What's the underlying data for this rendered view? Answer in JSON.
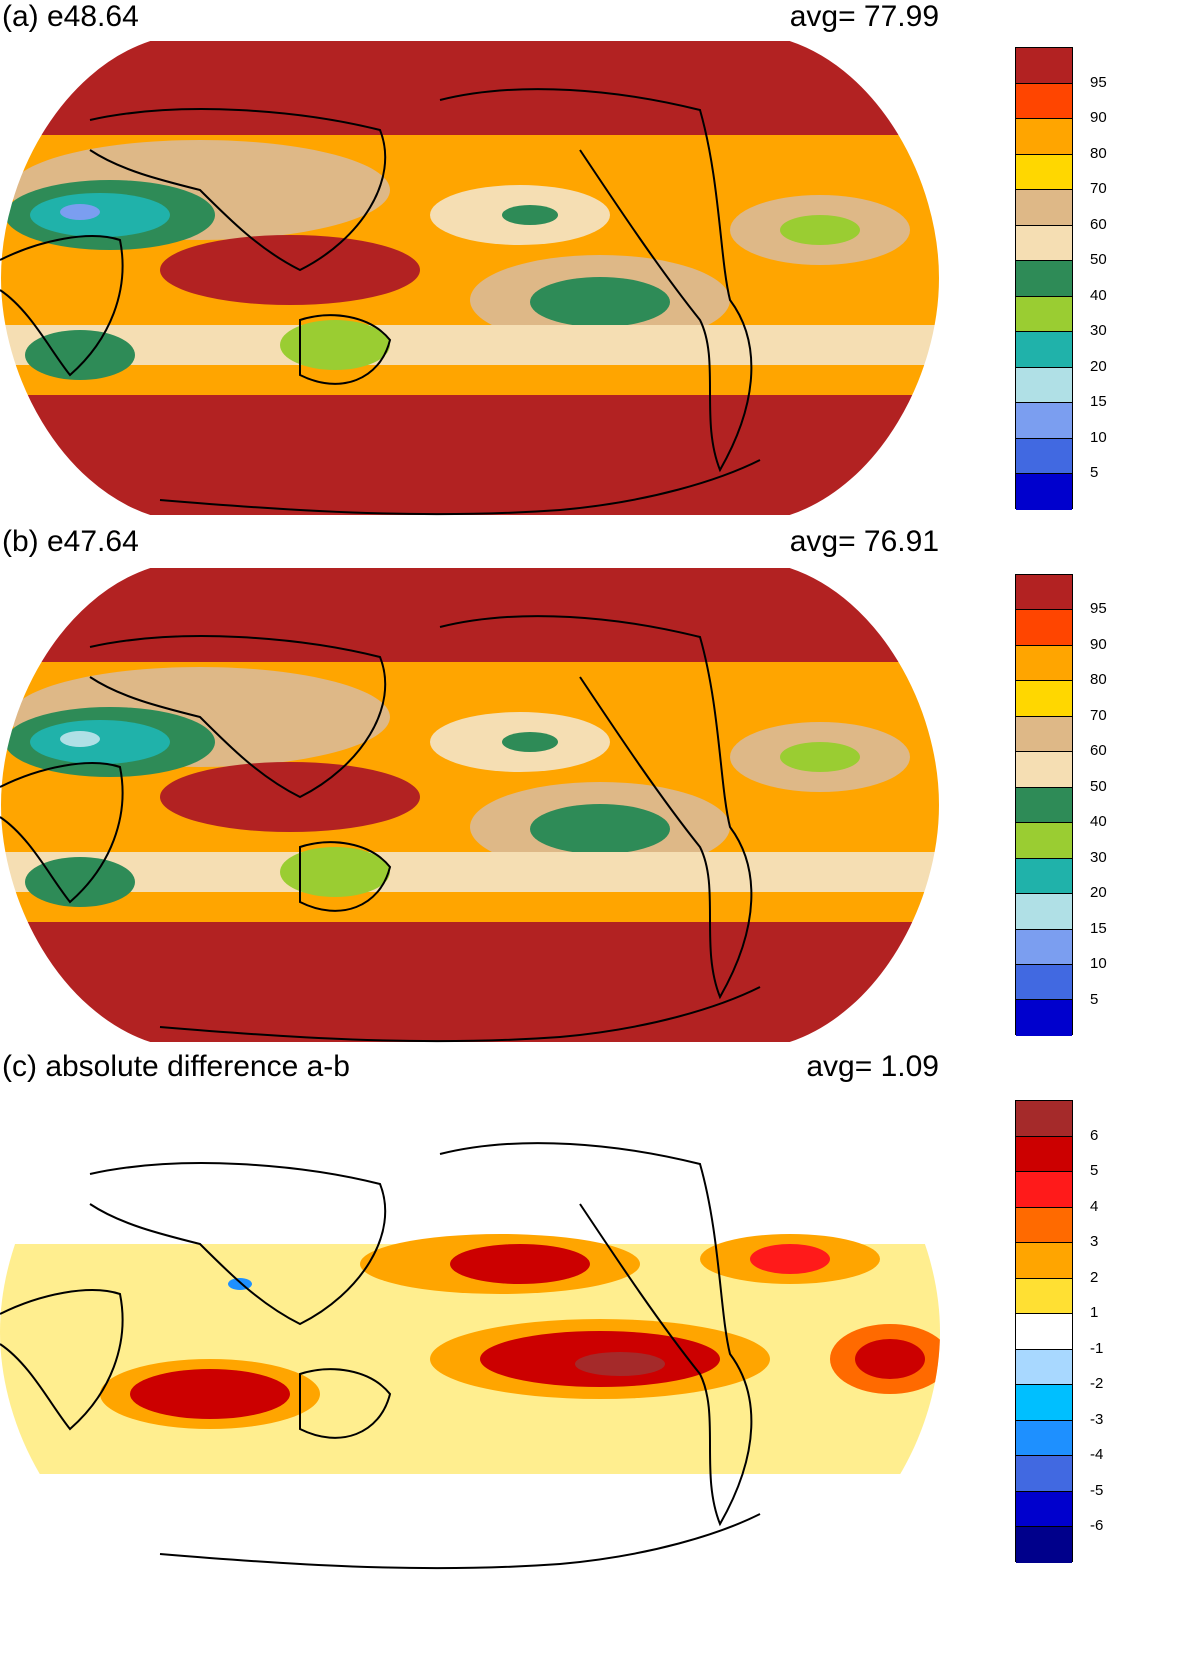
{
  "panels": [
    {
      "id": "a",
      "title": "(a) e48.64",
      "avg_label": "avg=   77.99",
      "average": 77.99,
      "colorbar": {
        "levels": [
          "95",
          "90",
          "80",
          "70",
          "60",
          "50",
          "40",
          "30",
          "20",
          "15",
          "10",
          "5"
        ],
        "colors": [
          "#b22222",
          "#ff4500",
          "#ffa500",
          "#ffd700",
          "#deb887",
          "#f5deb3",
          "#2e8b57",
          "#9acd32",
          "#20b2aa",
          "#b0e0e6",
          "#7b9ef0",
          "#4169e1",
          "#0000cd"
        ]
      }
    },
    {
      "id": "b",
      "title": "(b) e47.64",
      "avg_label": "avg=   76.91",
      "average": 76.91,
      "colorbar": {
        "levels": [
          "95",
          "90",
          "80",
          "70",
          "60",
          "50",
          "40",
          "30",
          "20",
          "15",
          "10",
          "5"
        ],
        "colors": [
          "#b22222",
          "#ff4500",
          "#ffa500",
          "#ffd700",
          "#deb887",
          "#f5deb3",
          "#2e8b57",
          "#9acd32",
          "#20b2aa",
          "#b0e0e6",
          "#7b9ef0",
          "#4169e1",
          "#0000cd"
        ]
      }
    },
    {
      "id": "c",
      "title": "(c) absolute difference a-b",
      "avg_label": "avg=    1.09",
      "average": 1.09,
      "colorbar": {
        "levels": [
          "6",
          "5",
          "4",
          "3",
          "2",
          "1",
          "-1",
          "-2",
          "-3",
          "-4",
          "-5",
          "-6"
        ],
        "colors": [
          "#a52a2a",
          "#cc0000",
          "#ff1a1a",
          "#ff6a00",
          "#ffa500",
          "#ffe033",
          "#ffffff",
          "#a8d8ff",
          "#00bfff",
          "#1e90ff",
          "#4169e1",
          "#0000cd",
          "#00008b"
        ]
      }
    }
  ],
  "chart_data": [
    {
      "type": "heatmap",
      "title": "(a) e48.64",
      "annotation": "avg=   77.99",
      "average": 77.99,
      "colorbar_levels": [
        95,
        90,
        80,
        70,
        60,
        50,
        40,
        30,
        20,
        15,
        10,
        5
      ]
    },
    {
      "type": "heatmap",
      "title": "(b) e47.64",
      "annotation": "avg=   76.91",
      "average": 76.91,
      "colorbar_levels": [
        95,
        90,
        80,
        70,
        60,
        50,
        40,
        30,
        20,
        15,
        10,
        5
      ]
    },
    {
      "type": "heatmap",
      "title": "(c) absolute difference a-b",
      "annotation": "avg=    1.09",
      "average": 1.09,
      "colorbar_levels": [
        6,
        5,
        4,
        3,
        2,
        1,
        -1,
        -2,
        -3,
        -4,
        -5,
        -6
      ]
    }
  ]
}
